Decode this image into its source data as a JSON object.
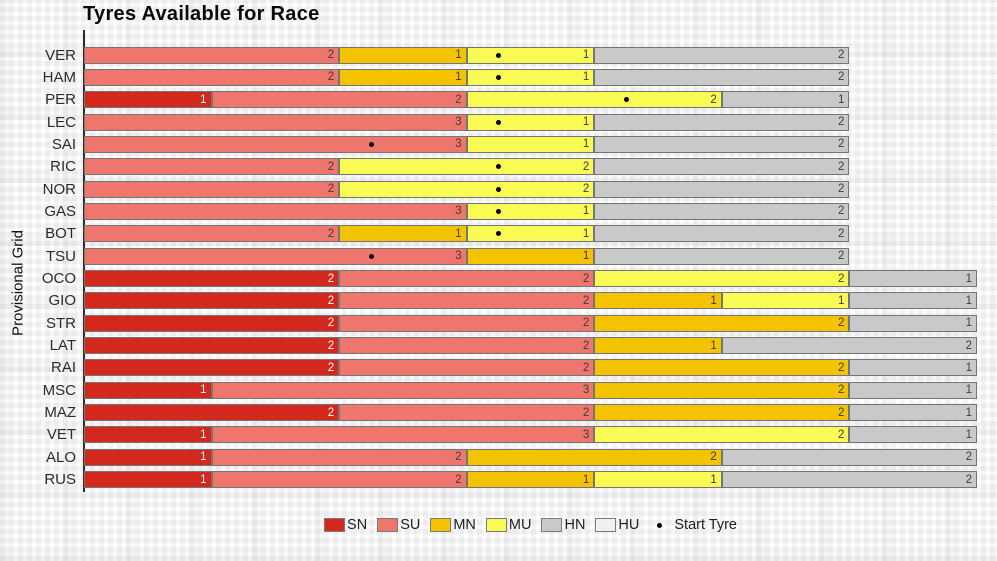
{
  "title": "Tyres Available for Race",
  "y_axis_label": "Provisional Grid",
  "legend": {
    "compounds": [
      {
        "code": "SN",
        "color": "#d2281e"
      },
      {
        "code": "SU",
        "color": "#ef766d"
      },
      {
        "code": "MN",
        "color": "#f3c300"
      },
      {
        "code": "MU",
        "color": "#fafa55"
      },
      {
        "code": "HN",
        "color": "#c9c9c9"
      },
      {
        "code": "HU",
        "color": "#f0f0f0"
      }
    ],
    "start_tyre_label": "Start Tyre",
    "start_tyre_marker": "•"
  },
  "chart_data": {
    "type": "bar",
    "orientation": "horizontal",
    "stacked": true,
    "title": "Tyres Available for Race",
    "ylabel": "Provisional Grid",
    "xlabel": "",
    "xlim": [
      0,
      7
    ],
    "grid": false,
    "legend_position": "bottom",
    "marker_note": "black dot = Start Tyre",
    "rows": [
      {
        "driver": "VER",
        "segments": [
          {
            "compound": "SU",
            "count": 2
          },
          {
            "compound": "MN",
            "count": 1
          },
          {
            "compound": "MU",
            "count": 1
          },
          {
            "compound": "HN",
            "count": 2
          }
        ],
        "start_dot_units": 3.25
      },
      {
        "driver": "HAM",
        "segments": [
          {
            "compound": "SU",
            "count": 2
          },
          {
            "compound": "MN",
            "count": 1
          },
          {
            "compound": "MU",
            "count": 1
          },
          {
            "compound": "HN",
            "count": 2
          }
        ],
        "start_dot_units": 3.25
      },
      {
        "driver": "PER",
        "segments": [
          {
            "compound": "SN",
            "count": 1
          },
          {
            "compound": "SU",
            "count": 2
          },
          {
            "compound": "MU",
            "count": 2
          },
          {
            "compound": "HN",
            "count": 1
          }
        ],
        "start_dot_units": 4.25
      },
      {
        "driver": "LEC",
        "segments": [
          {
            "compound": "SU",
            "count": 3
          },
          {
            "compound": "MU",
            "count": 1
          },
          {
            "compound": "HN",
            "count": 2
          }
        ],
        "start_dot_units": 3.25
      },
      {
        "driver": "SAI",
        "segments": [
          {
            "compound": "SU",
            "count": 3
          },
          {
            "compound": "MU",
            "count": 1
          },
          {
            "compound": "HN",
            "count": 2
          }
        ],
        "start_dot_units": 2.25
      },
      {
        "driver": "RIC",
        "segments": [
          {
            "compound": "SU",
            "count": 2
          },
          {
            "compound": "MU",
            "count": 2
          },
          {
            "compound": "HN",
            "count": 2
          }
        ],
        "start_dot_units": 3.25
      },
      {
        "driver": "NOR",
        "segments": [
          {
            "compound": "SU",
            "count": 2
          },
          {
            "compound": "MU",
            "count": 2
          },
          {
            "compound": "HN",
            "count": 2
          }
        ],
        "start_dot_units": 3.25
      },
      {
        "driver": "GAS",
        "segments": [
          {
            "compound": "SU",
            "count": 3
          },
          {
            "compound": "MU",
            "count": 1
          },
          {
            "compound": "HN",
            "count": 2
          }
        ],
        "start_dot_units": 3.25
      },
      {
        "driver": "BOT",
        "segments": [
          {
            "compound": "SU",
            "count": 2
          },
          {
            "compound": "MN",
            "count": 1
          },
          {
            "compound": "MU",
            "count": 1
          },
          {
            "compound": "HN",
            "count": 2
          }
        ],
        "start_dot_units": 3.25
      },
      {
        "driver": "TSU",
        "segments": [
          {
            "compound": "SU",
            "count": 3
          },
          {
            "compound": "MN",
            "count": 1
          },
          {
            "compound": "HN",
            "count": 2
          }
        ],
        "start_dot_units": 2.25
      },
      {
        "driver": "OCO",
        "segments": [
          {
            "compound": "SN",
            "count": 2
          },
          {
            "compound": "SU",
            "count": 2
          },
          {
            "compound": "MU",
            "count": 2
          },
          {
            "compound": "HN",
            "count": 1
          }
        ],
        "start_dot_units": null
      },
      {
        "driver": "GIO",
        "segments": [
          {
            "compound": "SN",
            "count": 2
          },
          {
            "compound": "SU",
            "count": 2
          },
          {
            "compound": "MN",
            "count": 1
          },
          {
            "compound": "MU",
            "count": 1
          },
          {
            "compound": "HN",
            "count": 1
          }
        ],
        "start_dot_units": null
      },
      {
        "driver": "STR",
        "segments": [
          {
            "compound": "SN",
            "count": 2
          },
          {
            "compound": "SU",
            "count": 2
          },
          {
            "compound": "MN",
            "count": 2
          },
          {
            "compound": "HN",
            "count": 1
          }
        ],
        "start_dot_units": null
      },
      {
        "driver": "LAT",
        "segments": [
          {
            "compound": "SN",
            "count": 2
          },
          {
            "compound": "SU",
            "count": 2
          },
          {
            "compound": "MN",
            "count": 1
          },
          {
            "compound": "HN",
            "count": 2
          }
        ],
        "start_dot_units": null
      },
      {
        "driver": "RAI",
        "segments": [
          {
            "compound": "SN",
            "count": 2
          },
          {
            "compound": "SU",
            "count": 2
          },
          {
            "compound": "MN",
            "count": 2
          },
          {
            "compound": "HN",
            "count": 1
          }
        ],
        "start_dot_units": null
      },
      {
        "driver": "MSC",
        "segments": [
          {
            "compound": "SN",
            "count": 1
          },
          {
            "compound": "SU",
            "count": 3
          },
          {
            "compound": "MN",
            "count": 2
          },
          {
            "compound": "HN",
            "count": 1
          }
        ],
        "start_dot_units": null
      },
      {
        "driver": "MAZ",
        "segments": [
          {
            "compound": "SN",
            "count": 2
          },
          {
            "compound": "SU",
            "count": 2
          },
          {
            "compound": "MN",
            "count": 2
          },
          {
            "compound": "HN",
            "count": 1
          }
        ],
        "start_dot_units": null
      },
      {
        "driver": "VET",
        "segments": [
          {
            "compound": "SN",
            "count": 1
          },
          {
            "compound": "SU",
            "count": 3
          },
          {
            "compound": "MU",
            "count": 2
          },
          {
            "compound": "HN",
            "count": 1
          }
        ],
        "start_dot_units": null
      },
      {
        "driver": "ALO",
        "segments": [
          {
            "compound": "SN",
            "count": 1
          },
          {
            "compound": "SU",
            "count": 2
          },
          {
            "compound": "MN",
            "count": 2
          },
          {
            "compound": "HN",
            "count": 2
          }
        ],
        "start_dot_units": null
      },
      {
        "driver": "RUS",
        "segments": [
          {
            "compound": "SN",
            "count": 1
          },
          {
            "compound": "SU",
            "count": 2
          },
          {
            "compound": "MN",
            "count": 1
          },
          {
            "compound": "MU",
            "count": 1
          },
          {
            "compound": "HN",
            "count": 2
          }
        ],
        "start_dot_units": null
      }
    ]
  }
}
